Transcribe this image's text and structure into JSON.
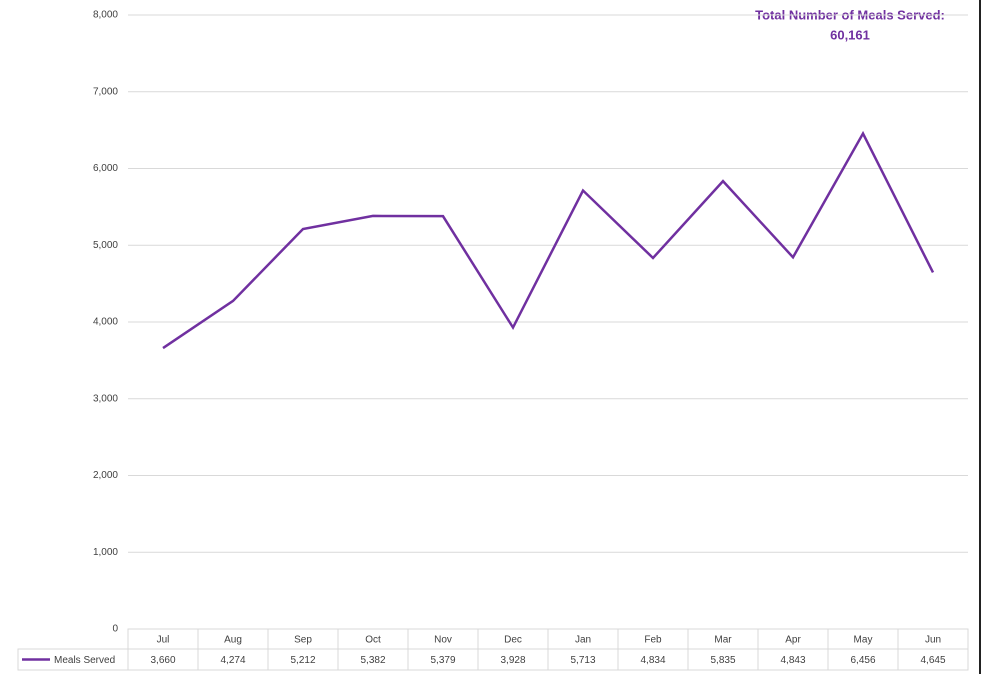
{
  "chart_data": {
    "type": "line",
    "annotations": [
      "Total Number of Meals Served:",
      "60,161"
    ],
    "categories": [
      "Jul",
      "Aug",
      "Sep",
      "Oct",
      "Nov",
      "Dec",
      "Jan",
      "Feb",
      "Mar",
      "Apr",
      "May",
      "Jun"
    ],
    "series": [
      {
        "name": "Meals Served",
        "color": "#7030a0",
        "values": [
          3660,
          4274,
          5212,
          5382,
          5379,
          3928,
          5713,
          4834,
          5835,
          4843,
          6456,
          4645
        ],
        "value_labels": [
          "3,660",
          "4,274",
          "5,212",
          "5,382",
          "5,379",
          "3,928",
          "5,713",
          "4,834",
          "5,835",
          "4,843",
          "6,456",
          "4,645"
        ]
      }
    ],
    "ylim": [
      0,
      8000
    ],
    "yticks": [
      0,
      {
        "value": 1000,
        "label": "1,000"
      },
      {
        "value": 2000,
        "label": "2,000"
      },
      {
        "value": 3000,
        "label": "3,000"
      },
      {
        "value": 4000,
        "label": "4,000"
      },
      {
        "value": 5000,
        "label": "5,000"
      },
      {
        "value": 6000,
        "label": "6,000"
      },
      {
        "value": 7000,
        "label": "7,000"
      },
      {
        "value": 8000,
        "label": "8,000"
      }
    ],
    "grid": true
  }
}
